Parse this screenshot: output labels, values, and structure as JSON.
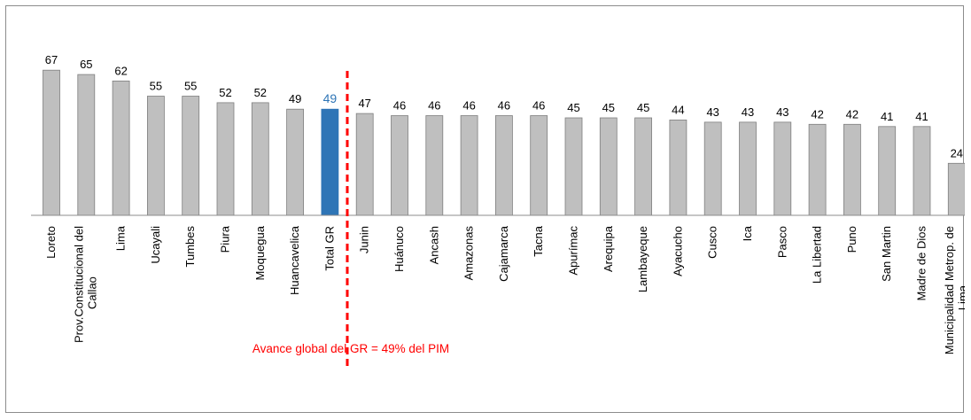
{
  "chart_data": {
    "type": "bar",
    "categories": [
      "Loreto",
      "Prov.Constitucional del Callao",
      "Lima",
      "Ucayali",
      "Tumbes",
      "Piura",
      "Moquegua",
      "Huancavelica",
      "Total GR",
      "Junin",
      "Huánuco",
      "Ancash",
      "Amazonas",
      "Cajamarca",
      "Tacna",
      "Apurímac",
      "Arequipa",
      "Lambayeque",
      "Ayacucho",
      "Cusco",
      "Ica",
      "Pasco",
      "La Libertad",
      "Puno",
      "San Martin",
      "Madre de Dios",
      "Municipalidad Metrop. de Lima"
    ],
    "values": [
      67,
      65,
      62,
      55,
      55,
      52,
      52,
      49,
      49,
      47,
      46,
      46,
      46,
      46,
      46,
      45,
      45,
      45,
      44,
      43,
      43,
      43,
      42,
      42,
      41,
      41,
      24
    ],
    "highlight_category": "Total GR",
    "bar_color": "#bfbfbf",
    "bar_border_color": "#7f7f7f",
    "highlight_color": "#2e75b6",
    "highlight_label_color": "#2e75b6",
    "reference_line_color": "#ff0000",
    "annotation": "Avance global del GR = 49% del PIM",
    "title": "",
    "xlabel": "",
    "ylabel": "",
    "ylim": [
      0,
      70
    ],
    "grid": false,
    "legend": "none",
    "data_labels": true
  }
}
